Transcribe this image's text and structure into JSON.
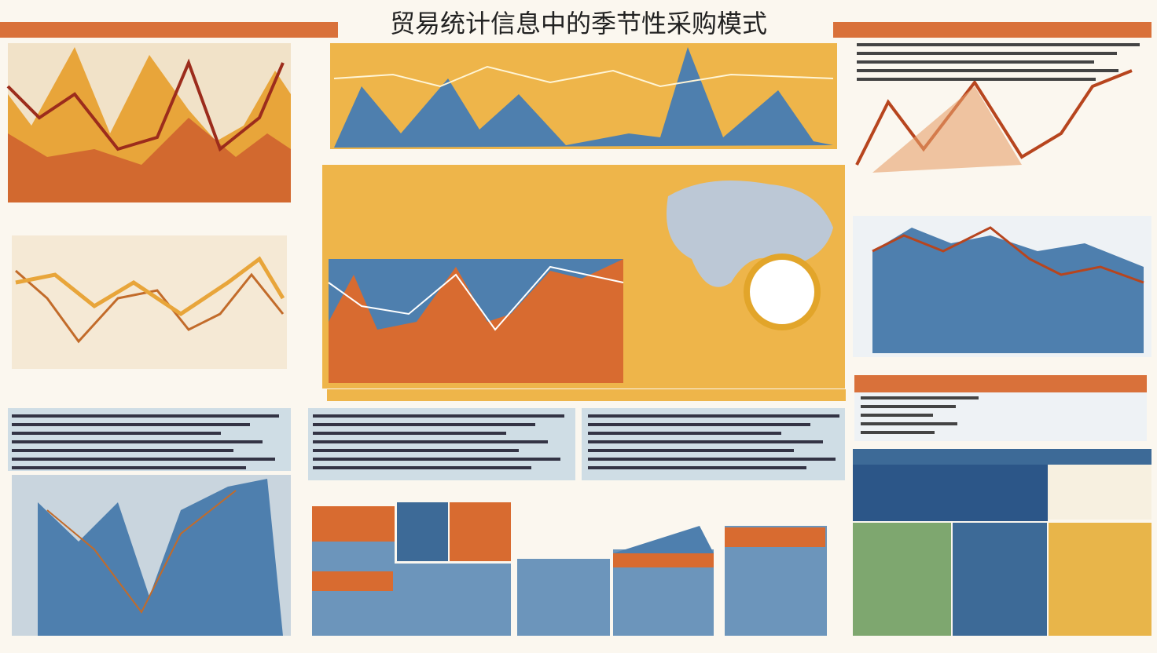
{
  "header": {
    "title": "贸易统计信息中的季节性采购模式"
  }
}
